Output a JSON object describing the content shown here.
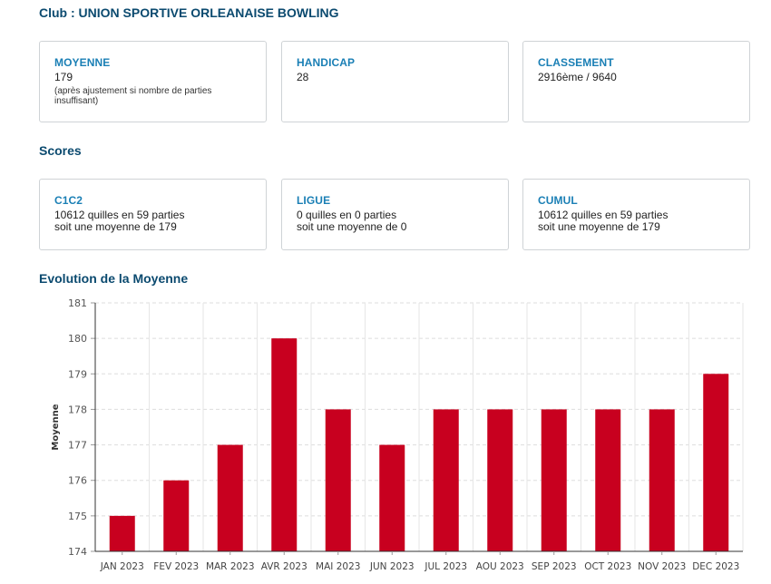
{
  "club": {
    "title": "Club : UNION SPORTIVE ORLEANAISE BOWLING"
  },
  "stats": [
    {
      "label": "MOYENNE",
      "value": "179",
      "note": "(après ajustement si nombre de parties insuffisant)"
    },
    {
      "label": "HANDICAP",
      "value": "28",
      "note": ""
    },
    {
      "label": "CLASSEMENT",
      "value": "2916ème / 9640",
      "note": ""
    }
  ],
  "scores": {
    "title": "Scores",
    "cards": [
      {
        "label": "C1C2",
        "line1": "10612 quilles en 59 parties",
        "line2": "soit une moyenne de 179"
      },
      {
        "label": "LIGUE",
        "line1": "0 quilles en 0 parties",
        "line2": "soit une moyenne de 0"
      },
      {
        "label": "CUMUL",
        "line1": "10612 quilles en 59 parties",
        "line2": "soit une moyenne de 179"
      }
    ]
  },
  "evolution": {
    "title": "Evolution de la Moyenne"
  },
  "colors": {
    "bar": "#c8001f",
    "heading": "#0b4a6f",
    "label": "#1a7fb5"
  },
  "chart_data": {
    "type": "bar",
    "categories": [
      "JAN 2023",
      "FEV 2023",
      "MAR 2023",
      "AVR 2023",
      "MAI 2023",
      "JUN 2023",
      "JUL 2023",
      "AOU 2023",
      "SEP 2023",
      "OCT 2023",
      "NOV 2023",
      "DEC 2023"
    ],
    "values": [
      175,
      176,
      177,
      180,
      178,
      177,
      178,
      178,
      178,
      178,
      178,
      179
    ],
    "title": "",
    "xlabel": "",
    "ylabel": "Moyenne",
    "ylim": [
      174,
      181
    ],
    "yticks": [
      174,
      175,
      176,
      177,
      178,
      179,
      180,
      181
    ],
    "grid": true,
    "legend": "none"
  }
}
